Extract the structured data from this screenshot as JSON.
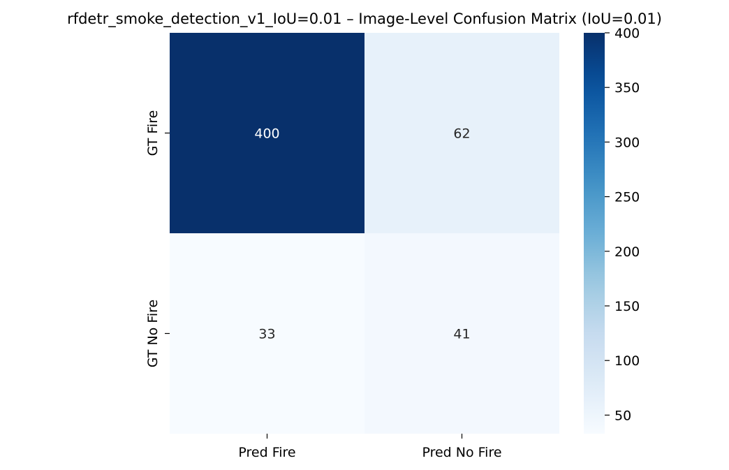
{
  "chart_data": {
    "type": "heatmap",
    "title": "rfdetr_smoke_detection_v1_IoU=0.01 – Image-Level Confusion Matrix (IoU=0.01)",
    "xlabel": "",
    "ylabel": "",
    "x_categories": [
      "Pred Fire",
      "Pred No Fire"
    ],
    "y_categories": [
      "GT Fire",
      "GT No Fire"
    ],
    "values": [
      [
        400,
        62
      ],
      [
        33,
        41
      ]
    ],
    "colorscale": "Blues",
    "vmin": 33,
    "vmax": 400,
    "colorbar_ticks": [
      50,
      100,
      150,
      200,
      250,
      300,
      350,
      400
    ]
  }
}
